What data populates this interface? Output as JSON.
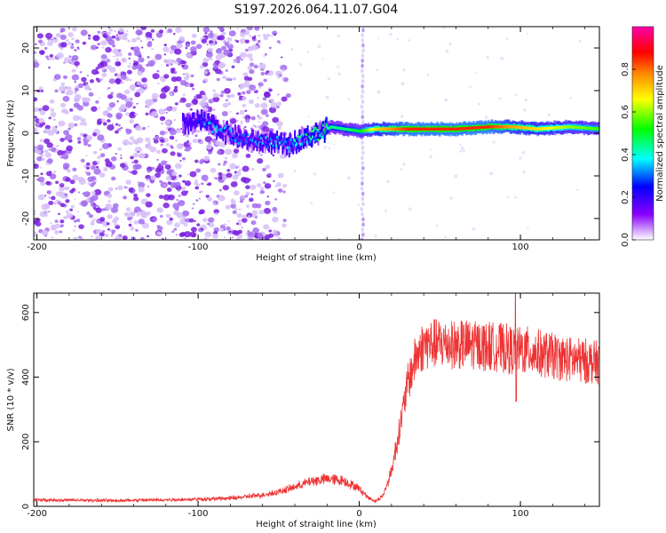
{
  "title": "S197.2026.064.11.07.G04",
  "colors": {
    "snr_line": "#ee3333",
    "axis": "#000000",
    "speckle": "#8a2be2"
  },
  "chart_data": [
    {
      "type": "heatmap",
      "xlabel": "Height of straight line (km)",
      "ylabel": "Frequency (Hz)",
      "xlim": [
        -202,
        149
      ],
      "ylim": [
        -25,
        25
      ],
      "xticks": [
        -200,
        -100,
        0,
        100
      ],
      "xtick_labels": [
        "-200",
        "-100",
        "0",
        "100"
      ],
      "yticks": [
        -20,
        -10,
        0,
        10,
        20
      ],
      "ytick_labels": [
        "-20",
        "-10",
        "0",
        "10",
        "20"
      ],
      "colorbar": {
        "label": "Normalized spectral amplitude",
        "range": [
          0,
          1
        ],
        "ticks": [
          0.0,
          0.2,
          0.4,
          0.6,
          0.8
        ],
        "tick_labels": [
          "0.0",
          "0.2",
          "0.4",
          "0.6",
          "0.8"
        ],
        "stops": [
          "#ffffff",
          "#8800ff",
          "#0000ff",
          "#00ffff",
          "#00ff00",
          "#ffff00",
          "#ff8800",
          "#ff0000",
          "#ff00aa"
        ]
      },
      "ridge": {
        "noise_region_end_km": -60,
        "signal_trace": [
          [
            -110,
            2,
            0.3
          ],
          [
            -100,
            3,
            0.3
          ],
          [
            -75,
            -1,
            0.25
          ],
          [
            -65,
            -2,
            0.25
          ],
          [
            -55,
            -2,
            0.3
          ],
          [
            -45,
            -3,
            0.3
          ],
          [
            -35,
            -1,
            0.35
          ],
          [
            -25,
            0,
            0.4
          ],
          [
            -18,
            1.5,
            0.45
          ],
          [
            -10,
            1,
            0.45
          ],
          [
            0,
            0.5,
            0.5
          ],
          [
            10,
            1,
            0.7
          ],
          [
            30,
            1,
            0.85
          ],
          [
            60,
            1,
            0.85
          ],
          [
            80,
            1.5,
            0.85
          ],
          [
            95,
            1.5,
            0.75
          ],
          [
            110,
            1,
            0.7
          ],
          [
            130,
            1.5,
            0.6
          ],
          [
            149,
            1,
            0.55
          ]
        ],
        "vertical_stripe_km": 2
      }
    },
    {
      "type": "line",
      "xlabel": "Height of straight line (km)",
      "ylabel": "SNR (10 * v/v)",
      "xlim": [
        -202,
        149
      ],
      "ylim": [
        0,
        660
      ],
      "xticks": [
        -200,
        -100,
        0,
        100
      ],
      "xtick_labels": [
        "-200",
        "-100",
        "0",
        "100"
      ],
      "yticks": [
        0,
        200,
        400,
        600
      ],
      "ytick_labels": [
        "0",
        "200",
        "400",
        "600"
      ],
      "envelope": [
        [
          -202,
          20
        ],
        [
          -150,
          18
        ],
        [
          -100,
          22
        ],
        [
          -80,
          25
        ],
        [
          -60,
          35
        ],
        [
          -50,
          45
        ],
        [
          -40,
          60
        ],
        [
          -30,
          78
        ],
        [
          -20,
          85
        ],
        [
          -10,
          80
        ],
        [
          0,
          55
        ],
        [
          5,
          30
        ],
        [
          10,
          15
        ],
        [
          15,
          35
        ],
        [
          20,
          110
        ],
        [
          25,
          240
        ],
        [
          30,
          380
        ],
        [
          35,
          460
        ],
        [
          40,
          500
        ],
        [
          50,
          505
        ],
        [
          60,
          500
        ],
        [
          70,
          500
        ],
        [
          80,
          495
        ],
        [
          90,
          490
        ],
        [
          97,
          480
        ],
        [
          100,
          485
        ],
        [
          110,
          475
        ],
        [
          120,
          465
        ],
        [
          130,
          455
        ],
        [
          140,
          450
        ],
        [
          149,
          445
        ]
      ],
      "spikes": [
        [
          97,
          660
        ],
        [
          97,
          325
        ]
      ],
      "noise_amplitude": 0.12
    }
  ]
}
